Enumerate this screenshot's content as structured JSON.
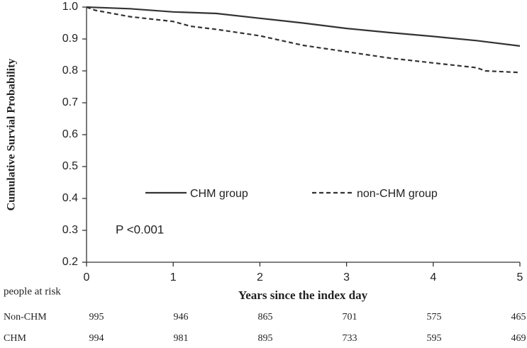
{
  "chart_data": {
    "type": "line",
    "y_label": "Cumulative Survial Probability",
    "x_label": "Years since the index day",
    "annotation": "P <0.001",
    "xlim": [
      0,
      5
    ],
    "xticks": [
      0,
      1,
      2,
      3,
      4,
      5
    ],
    "ylim": [
      0.2,
      1.0
    ],
    "yticks": [
      {
        "value": 0.2,
        "label": "0.2"
      },
      {
        "value": 0.3,
        "label": "0.3"
      },
      {
        "value": 0.4,
        "label": "0.4"
      },
      {
        "value": 0.5,
        "label": "0.5"
      },
      {
        "value": 0.6,
        "label": "0.6"
      },
      {
        "value": 0.7,
        "label": "0.7"
      },
      {
        "value": 0.8,
        "label": "0.8"
      },
      {
        "value": 0.9,
        "label": "0.9"
      },
      {
        "value": 1.0,
        "label": "1.0"
      }
    ],
    "series": [
      {
        "name": "CHM group",
        "color": "#333333",
        "dash": false,
        "x": [
          0,
          0.5,
          1,
          1.5,
          2,
          2.5,
          3,
          3.5,
          4,
          4.5,
          5
        ],
        "values": [
          1.0,
          0.995,
          0.985,
          0.98,
          0.965,
          0.95,
          0.933,
          0.92,
          0.908,
          0.895,
          0.878
        ]
      },
      {
        "name": "non-CHM group",
        "color": "#333333",
        "dash": true,
        "x": [
          0,
          0.1,
          0.5,
          1,
          1.2,
          1.5,
          2,
          2.5,
          3,
          3.5,
          4,
          4.5,
          4.6,
          5
        ],
        "values": [
          1.0,
          0.99,
          0.97,
          0.955,
          0.94,
          0.93,
          0.91,
          0.88,
          0.86,
          0.84,
          0.825,
          0.81,
          0.8,
          0.795
        ]
      }
    ],
    "risk_table": {
      "title": "people at risk",
      "rows": [
        {
          "name": "Non-CHM",
          "values": [
            995,
            946,
            865,
            701,
            575,
            465
          ]
        },
        {
          "name": "CHM",
          "values": [
            994,
            981,
            895,
            733,
            595,
            469
          ]
        }
      ]
    }
  }
}
